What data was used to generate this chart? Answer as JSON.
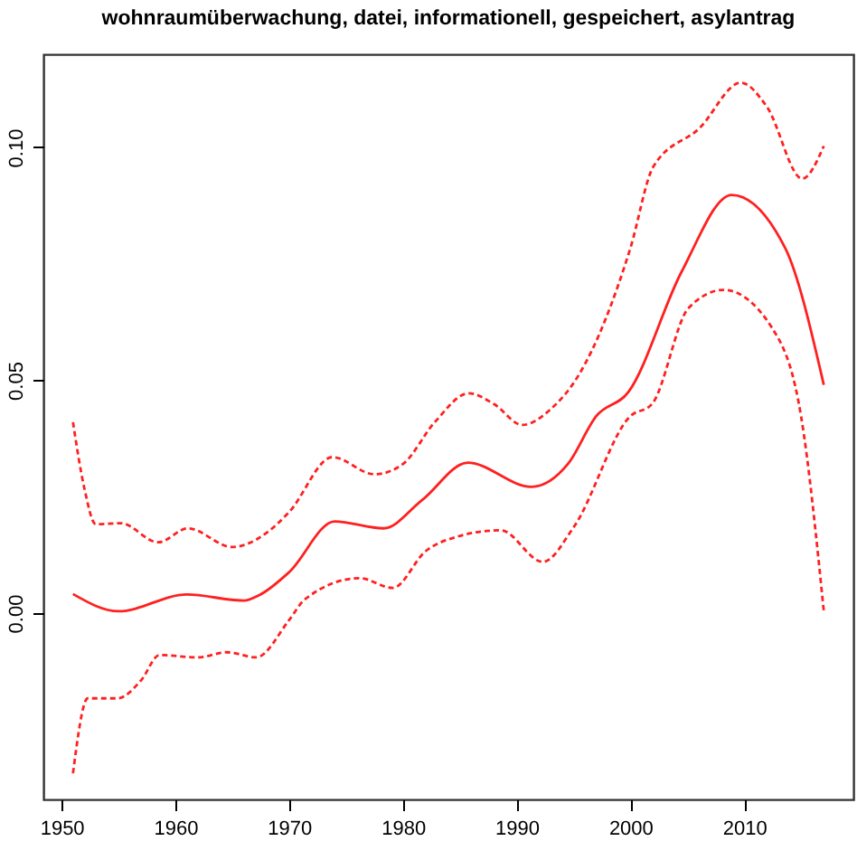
{
  "chart_data": {
    "type": "line",
    "title": "wohnraumüberwachung, datei, informationell, gespeichert, asylantrag",
    "xlim": [
      1948.4,
      2019.6
    ],
    "xticks": [
      1950,
      1960,
      1970,
      1980,
      1990,
      2000,
      2010
    ],
    "ylim": [
      -0.04,
      0.12
    ],
    "yticks": [
      {
        "value": 0,
        "label": "0.00"
      },
      {
        "value": 0.05,
        "label": "0.05"
      },
      {
        "value": 0.1,
        "label": "0.10"
      }
    ],
    "grid": false,
    "marker": "none",
    "series": [
      {
        "color": "#ff2020",
        "line_style": "solid",
        "x": [
          1951,
          1955,
          1961,
          1966,
          1967.4,
          1970,
          1974,
          1978.3,
          1981.7,
          1985.7,
          1991.3,
          1994.5,
          1997,
          1999.8,
          2004.5,
          2008.9,
          2013.6,
          2017
        ],
        "values": [
          0.0041,
          0.0004,
          0.004,
          0.0027,
          0.0039,
          0.0088,
          0.0197,
          0.0182,
          0.0243,
          0.0323,
          0.0271,
          0.032,
          0.0423,
          0.0474,
          0.0733,
          0.0898,
          0.0784,
          0.049
        ]
      },
      {
        "color": "#ff2020",
        "line_style": "dashed",
        "x": [
          1951,
          1952,
          1953,
          1955.2,
          1958.5,
          1961.1,
          1965,
          1968,
          1970,
          1973.8,
          1977.5,
          1980,
          1982.8,
          1985.8,
          1988,
          1990.5,
          1992.9,
          1995.5,
          2000,
          2002,
          2006.1,
          2009.7,
          2012,
          2015.1,
          2017
        ],
        "values": [
          0.041,
          0.0268,
          0.0191,
          0.0193,
          0.0152,
          0.0182,
          0.0142,
          0.0172,
          0.0217,
          0.0335,
          0.0298,
          0.032,
          0.041,
          0.0472,
          0.0449,
          0.0404,
          0.0436,
          0.0513,
          0.0784,
          0.0958,
          0.1042,
          0.1139,
          0.1087,
          0.0933,
          0.1003
        ]
      },
      {
        "color": "#ff2020",
        "line_style": "dashed",
        "x": [
          1951,
          1952.3,
          1954.9,
          1957,
          1958.6,
          1962,
          1964.5,
          1967.1,
          1970,
          1971.4,
          1976.2,
          1979.1,
          1982,
          1984.9,
          1988.6,
          1992.3,
          1995,
          2000,
          2001.9,
          2005.1,
          2008.2,
          2013,
          2015,
          2017
        ],
        "values": [
          -0.0344,
          -0.0183,
          -0.0183,
          -0.0144,
          -0.009,
          -0.0095,
          -0.0084,
          -0.0095,
          -0.0015,
          0.003,
          0.0075,
          0.0054,
          0.0133,
          0.0165,
          0.0178,
          0.011,
          0.0184,
          0.0423,
          0.0449,
          0.0655,
          0.0694,
          0.059,
          0.0423,
          0.0004
        ]
      }
    ]
  }
}
